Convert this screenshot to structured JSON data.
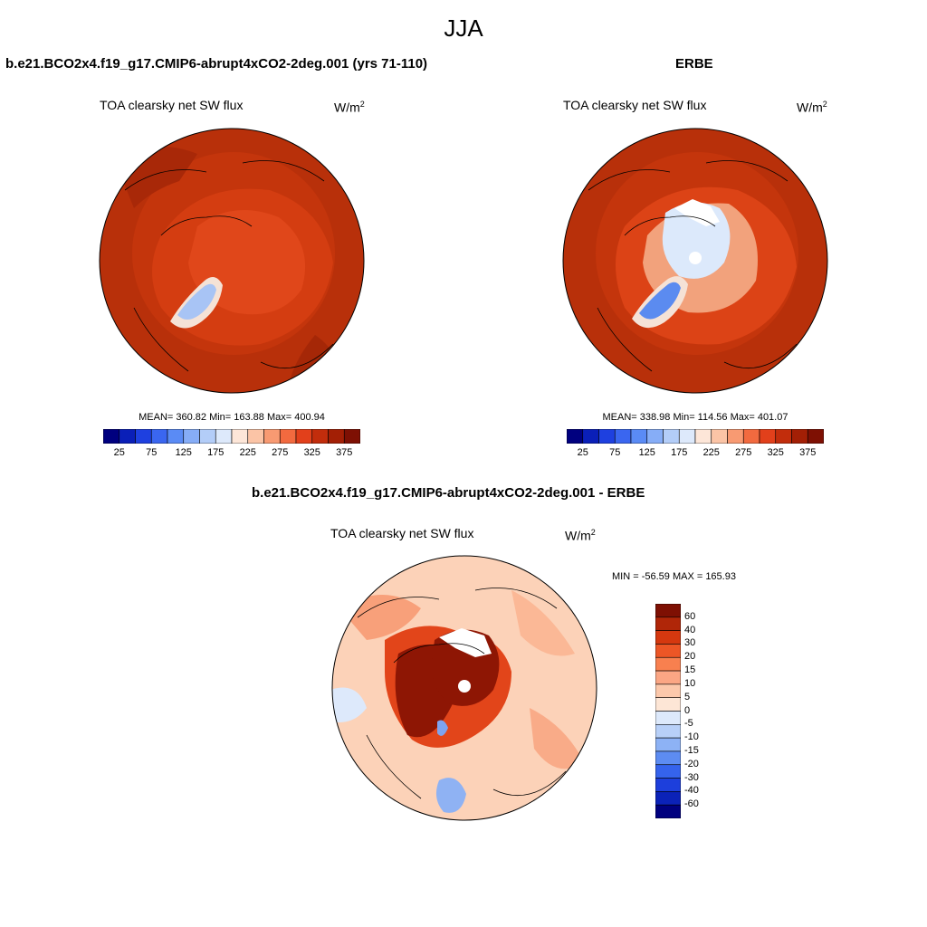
{
  "title": "JJA",
  "panels": {
    "model": {
      "case": "b.e21.BCO2x4.f19_g17.CMIP6-abrupt4xCO2-2deg.001 (yrs 71-110)",
      "variable": "TOA clearsky net SW flux",
      "units_base": "W/m",
      "units_exp": "2",
      "stats": "MEAN= 360.82  Min= 163.88  Max= 400.94"
    },
    "obs": {
      "case": "ERBE",
      "variable": "TOA clearsky net SW flux",
      "units_base": "W/m",
      "units_exp": "2",
      "stats": "MEAN= 338.98  Min= 114.56  Max= 401.07"
    },
    "diff": {
      "case": "b.e21.BCO2x4.f19_g17.CMIP6-abrupt4xCO2-2deg.001 - ERBE",
      "variable": "TOA clearsky net SW flux",
      "units_base": "W/m",
      "units_exp": "2",
      "stats": "MIN = -56.59 MAX = 165.93"
    }
  },
  "colorbar_abs": {
    "tick_labels": [
      "25",
      "75",
      "125",
      "175",
      "225",
      "275",
      "325",
      "375"
    ],
    "colors": [
      "#00007f",
      "#0a1fb8",
      "#1e40e0",
      "#3a66f0",
      "#5a8bf5",
      "#86adf7",
      "#b3cdf8",
      "#dde9fb",
      "#fde6d8",
      "#fbc4a6",
      "#f89a72",
      "#f26a3f",
      "#e2401b",
      "#c22d0c",
      "#a31f05",
      "#7e1003"
    ]
  },
  "colorbar_diff": {
    "tick_labels": [
      "60",
      "40",
      "30",
      "20",
      "15",
      "10",
      "5",
      "0",
      "-5",
      "-10",
      "-15",
      "-20",
      "-30",
      "-40",
      "-60"
    ],
    "colors": [
      "#7e1003",
      "#b02608",
      "#d5380f",
      "#ec5626",
      "#f8804f",
      "#fba684",
      "#fcc8ab",
      "#fde6d6",
      "#dde9fb",
      "#b8d0f8",
      "#8db2f5",
      "#5d8cf2",
      "#3563ec",
      "#1d3fdc",
      "#0b22b8",
      "#00007f"
    ]
  },
  "map_colors": {
    "model_base": "#b8300a",
    "model_ring": "#cc3a10",
    "model_center": "#e0461a",
    "greenland_cold": "#a8c4f5",
    "obs_ice": "#dce9fb",
    "diff_base": "#fcd2b8",
    "diff_hot": "#8e1604"
  }
}
